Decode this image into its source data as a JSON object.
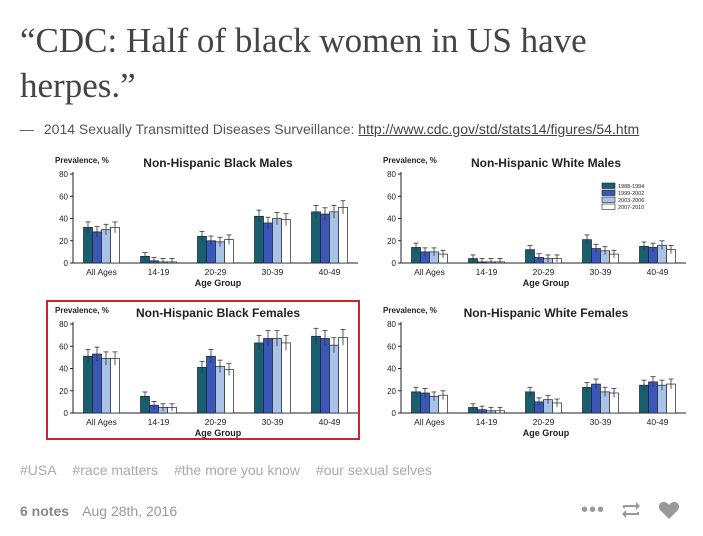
{
  "post": {
    "quote": "“CDC: Half of black women in US have herpes.”",
    "source_dash": "—",
    "source_text": "2014 Sexually Transmitted Diseases Surveillance:",
    "source_link": "http://www.cdc.gov/std/stats14/figures/54.htm"
  },
  "tags": [
    "#USA",
    "#race matters",
    "#the more you know",
    "#our sexual selves"
  ],
  "footer": {
    "notes": "6 notes",
    "date": "Aug 28th, 2016"
  },
  "icons": {
    "more": "more-dots-icon",
    "reblog": "reblog-icon",
    "like": "heart-icon"
  },
  "colors": {
    "highlight": "#c8262c",
    "series": [
      "#1a5f70",
      "#3a56b8",
      "#a9c2e8",
      "#ffffff"
    ]
  },
  "chart_data": [
    {
      "type": "bar",
      "title": "Non-Hispanic Black Males",
      "ylabel": "Prevalence, %",
      "xlabel": "Age Group",
      "categories": [
        "All Ages",
        "14-19",
        "20-29",
        "30-39",
        "40-49"
      ],
      "ylim": [
        0,
        80
      ],
      "yticks": [
        0,
        20,
        40,
        60,
        80
      ],
      "series": [
        {
          "values": [
            32,
            6,
            24,
            42,
            46
          ]
        },
        {
          "values": [
            28,
            2,
            20,
            36,
            44
          ]
        },
        {
          "values": [
            30,
            1,
            19,
            40,
            46
          ]
        },
        {
          "values": [
            32,
            1,
            21,
            39,
            50
          ]
        }
      ]
    },
    {
      "type": "bar",
      "title": "Non-Hispanic White Males",
      "ylabel": "Prevalence, %",
      "xlabel": "Age Group",
      "categories": [
        "All Ages",
        "14-19",
        "20-29",
        "30-39",
        "40-49"
      ],
      "ylim": [
        0,
        80
      ],
      "yticks": [
        0,
        20,
        40,
        60,
        80
      ],
      "legend": [
        "1988-1994",
        "1999-2002",
        "2003-2006",
        "2007-2010"
      ],
      "series": [
        {
          "name": "1988-1994",
          "values": [
            14,
            4,
            12,
            21,
            15
          ]
        },
        {
          "name": "1999-2002",
          "values": [
            10,
            1,
            5,
            13,
            14
          ]
        },
        {
          "name": "2003-2006",
          "values": [
            10,
            1,
            4,
            11,
            16
          ]
        },
        {
          "name": "2007-2010",
          "values": [
            8,
            1,
            4,
            8,
            12
          ]
        }
      ]
    },
    {
      "type": "bar",
      "title": "Non-Hispanic Black Females",
      "ylabel": "Prevalence, %",
      "xlabel": "Age Group",
      "categories": [
        "All Ages",
        "14-19",
        "20-29",
        "30-39",
        "40-49"
      ],
      "ylim": [
        0,
        80
      ],
      "yticks": [
        0,
        20,
        40,
        60,
        80
      ],
      "series": [
        {
          "values": [
            51,
            15,
            41,
            63,
            69
          ]
        },
        {
          "values": [
            53,
            7,
            51,
            67,
            67
          ]
        },
        {
          "values": [
            49,
            5,
            42,
            67,
            61
          ]
        },
        {
          "values": [
            49,
            5,
            39,
            63,
            68
          ]
        }
      ]
    },
    {
      "type": "bar",
      "title": "Non-Hispanic White Females",
      "ylabel": "Prevalence, %",
      "xlabel": "Age Group",
      "categories": [
        "All Ages",
        "14-19",
        "20-29",
        "30-39",
        "40-49"
      ],
      "ylim": [
        0,
        80
      ],
      "yticks": [
        0,
        20,
        40,
        60,
        80
      ],
      "series": [
        {
          "values": [
            19,
            5,
            19,
            23,
            25
          ]
        },
        {
          "values": [
            18,
            3,
            10,
            26,
            28
          ]
        },
        {
          "values": [
            15,
            2,
            12,
            19,
            25
          ]
        },
        {
          "values": [
            16,
            2,
            9,
            18,
            26
          ]
        }
      ]
    }
  ]
}
